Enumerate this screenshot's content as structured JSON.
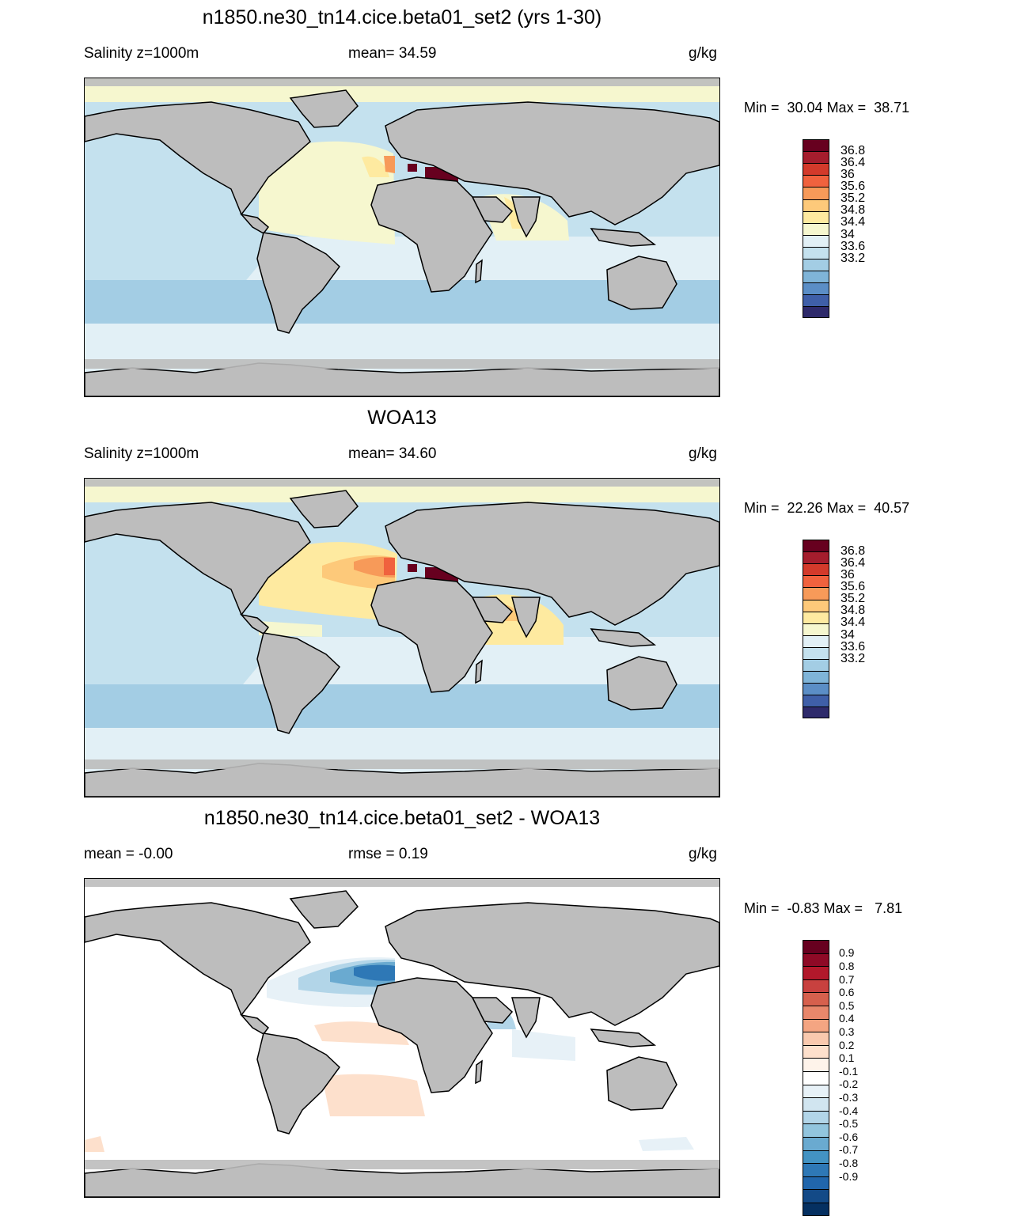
{
  "panels": [
    {
      "title": "n1850.ne30_tn14.cice.beta01_set2 (yrs 1-30)",
      "left_text": "Salinity z=1000m",
      "mid_text": "mean=  34.59",
      "units": "g/kg",
      "minmax": "Min =  30.04 Max =  38.71",
      "colorbar": {
        "colors": [
          "#67001f",
          "#a51d2d",
          "#d33a2b",
          "#f0623e",
          "#f79a59",
          "#fdc97a",
          "#feeaa0",
          "#f6f7cf",
          "#e2f0f6",
          "#c4e1ee",
          "#a3cde4",
          "#7fb4d8",
          "#5b8ec6",
          "#3f5fa8",
          "#2e2a6b"
        ],
        "labels": [
          "36.8",
          "36.4",
          "36",
          "35.6",
          "35.2",
          "34.8",
          "34.4",
          "34",
          "33.6",
          "33.2"
        ]
      }
    },
    {
      "title": "WOA13",
      "left_text": "Salinity z=1000m",
      "mid_text": "mean=  34.60",
      "units": "g/kg",
      "minmax": "Min =  22.26 Max =  40.57",
      "colorbar": {
        "colors": [
          "#67001f",
          "#a51d2d",
          "#d33a2b",
          "#f0623e",
          "#f79a59",
          "#fdc97a",
          "#feeaa0",
          "#f6f7cf",
          "#e2f0f6",
          "#c4e1ee",
          "#a3cde4",
          "#7fb4d8",
          "#5b8ec6",
          "#3f5fa8",
          "#2e2a6b"
        ],
        "labels": [
          "36.8",
          "36.4",
          "36",
          "35.6",
          "35.2",
          "34.8",
          "34.4",
          "34",
          "33.6",
          "33.2"
        ]
      }
    },
    {
      "title": "n1850.ne30_tn14.cice.beta01_set2 - WOA13",
      "left_text": "mean =  -0.00",
      "mid_text": "rmse =   0.19",
      "units": "g/kg",
      "minmax": "Min =  -0.83 Max =   7.81",
      "colorbar": {
        "colors": [
          "#67001f",
          "#8e0a26",
          "#b2182b",
          "#c8413f",
          "#d6604d",
          "#e8876b",
          "#f4a582",
          "#f9c9ae",
          "#fde0cc",
          "#fef3ea",
          "#ffffff",
          "#e7f1f7",
          "#d1e5f0",
          "#b2d5e8",
          "#92c5de",
          "#6aaad0",
          "#4393c3",
          "#2e78b6",
          "#2166ac",
          "#134a87",
          "#053061"
        ],
        "labels": [
          "0.9",
          "0.8",
          "0.7",
          "0.6",
          "0.5",
          "0.4",
          "0.3",
          "0.2",
          "0.1",
          "-0.1",
          "-0.2",
          "-0.3",
          "-0.4",
          "-0.5",
          "-0.6",
          "-0.7",
          "-0.8",
          "-0.9"
        ]
      }
    }
  ]
}
